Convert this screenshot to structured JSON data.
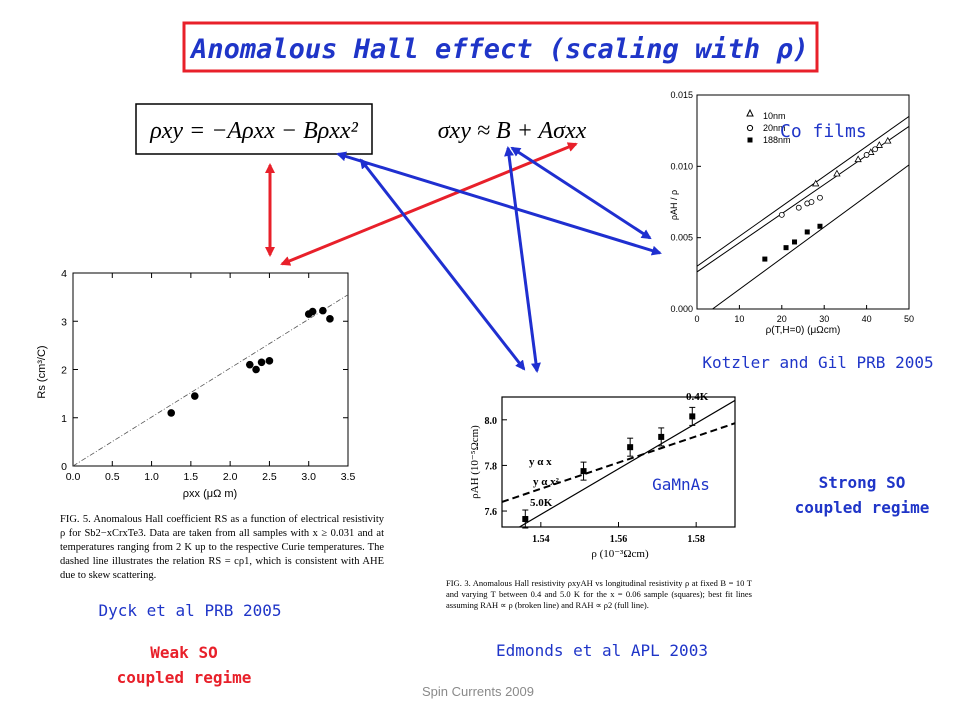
{
  "title": "Anomalous Hall effect (scaling with ρ)",
  "equations": {
    "eq1": "ρxy = −Aρxx − Bρxx²",
    "eq2": "σxy ≈ B + Aσxx"
  },
  "colors": {
    "title_red": "#e8202a",
    "arrow_blue": "#1f2fd0",
    "arrow_red": "#e8202a",
    "text_blue": "#1f35c8"
  },
  "labels": {
    "co_films": "Co films",
    "kotzler": "Kotzler and Gil PRB 2005",
    "gamnas": "GaMnAs",
    "strong_so": "Strong SO coupled regime",
    "dyck": "Dyck et al PRB 2005",
    "weak_so": "Weak SO coupled regime",
    "edmonds": "Edmonds et al APL 2003",
    "footer": "Spin Currents 2009"
  },
  "captions": {
    "dyck_fig": "FIG. 5. Anomalous Hall coefficient RS as a function of electrical resistivity ρ for Sb2−xCrxTe3. Data are taken from all samples with x ≥ 0.031 and at temperatures ranging from 2 K up to the respective Curie temperatures. The dashed line illustrates the relation RS = cρ1, which is consistent with AHE due to skew scattering.",
    "edmonds_fig": "FIG. 3. Anomalous Hall resistivity ρxyAH vs longitudinal resistivity ρ at fixed B = 10 T and varying T between 0.4 and 5.0 K for the x = 0.06 sample (squares); best fit lines assuming RAH ∝ ρ (broken line) and RAH ∝ ρ2 (full line)."
  },
  "chart_data": [
    {
      "type": "scatter",
      "xlabel": "ρ(T,H=0) (μΩcm)",
      "ylabel": "ρAH / ρ",
      "xlim": [
        0,
        50
      ],
      "ylim": [
        0,
        0.015
      ],
      "xticks": [
        "0",
        "10",
        "20",
        "30",
        "40",
        "50"
      ],
      "yticks": [
        "0.000",
        "0.005",
        "0.010",
        "0.015"
      ],
      "legend": [
        "10nm",
        "20nm",
        "188nm"
      ],
      "series": [
        {
          "name": "10nm",
          "marker": "triangle",
          "points": [
            [
              28,
              0.0088
            ],
            [
              33,
              0.0095
            ],
            [
              38,
              0.0105
            ],
            [
              41,
              0.011
            ],
            [
              43,
              0.0115
            ],
            [
              45,
              0.0118
            ]
          ]
        },
        {
          "name": "20nm",
          "marker": "circle",
          "points": [
            [
              20,
              0.0066
            ],
            [
              24,
              0.0071
            ],
            [
              26,
              0.0074
            ],
            [
              27,
              0.0075
            ],
            [
              29,
              0.0078
            ],
            [
              40,
              0.0108
            ],
            [
              42,
              0.0112
            ]
          ]
        },
        {
          "name": "188nm",
          "marker": "square",
          "points": [
            [
              16,
              0.0035
            ],
            [
              21,
              0.0043
            ],
            [
              23,
              0.0047
            ],
            [
              26,
              0.0054
            ],
            [
              29,
              0.0058
            ]
          ]
        }
      ],
      "fit_lines": [
        [
          [
            0,
            0.003
          ],
          [
            50,
            0.0135
          ]
        ],
        [
          [
            0,
            0.0026
          ],
          [
            50,
            0.0128
          ]
        ],
        [
          [
            0,
            -0.0008
          ],
          [
            50,
            0.0101
          ]
        ]
      ]
    },
    {
      "type": "scatter",
      "xlabel": "ρxx (μΩ m)",
      "ylabel": "Rs (cm³/C)",
      "xlim": [
        0,
        3.5
      ],
      "ylim": [
        0,
        4
      ],
      "xticks": [
        "0.0",
        "0.5",
        "1.0",
        "1.5",
        "2.0",
        "2.5",
        "3.0",
        "3.5"
      ],
      "yticks": [
        "0",
        "1",
        "2",
        "3",
        "4"
      ],
      "points": [
        [
          1.25,
          1.1
        ],
        [
          1.55,
          1.45
        ],
        [
          2.25,
          2.1
        ],
        [
          2.33,
          2.0
        ],
        [
          2.4,
          2.15
        ],
        [
          2.5,
          2.18
        ],
        [
          3.0,
          3.15
        ],
        [
          3.05,
          3.2
        ],
        [
          3.18,
          3.22
        ],
        [
          3.27,
          3.05
        ]
      ],
      "dashed_line": [
        [
          0,
          0
        ],
        [
          3.5,
          3.55
        ]
      ]
    },
    {
      "type": "scatter",
      "xlabel": "ρ (10⁻³Ωcm)",
      "ylabel": "ρAH (10⁻⁵Ωcm)",
      "xlim": [
        1.53,
        1.59
      ],
      "ylim": [
        7.53,
        8.1
      ],
      "xticks": [
        "1.54",
        "1.56",
        "1.58"
      ],
      "yticks": [
        "7.6",
        "7.8",
        "8.0"
      ],
      "points": [
        [
          1.536,
          7.565
        ],
        [
          1.551,
          7.775
        ],
        [
          1.563,
          7.88
        ],
        [
          1.571,
          7.925
        ],
        [
          1.579,
          8.015
        ]
      ],
      "annotations": [
        "0.4K",
        "5.0K",
        "y α x",
        "y α x²"
      ],
      "solid_fit": [
        [
          1.53,
          7.485
        ],
        [
          1.59,
          8.085
        ]
      ],
      "dashed_fit": [
        [
          1.53,
          7.64
        ],
        [
          1.59,
          7.985
        ]
      ]
    }
  ]
}
